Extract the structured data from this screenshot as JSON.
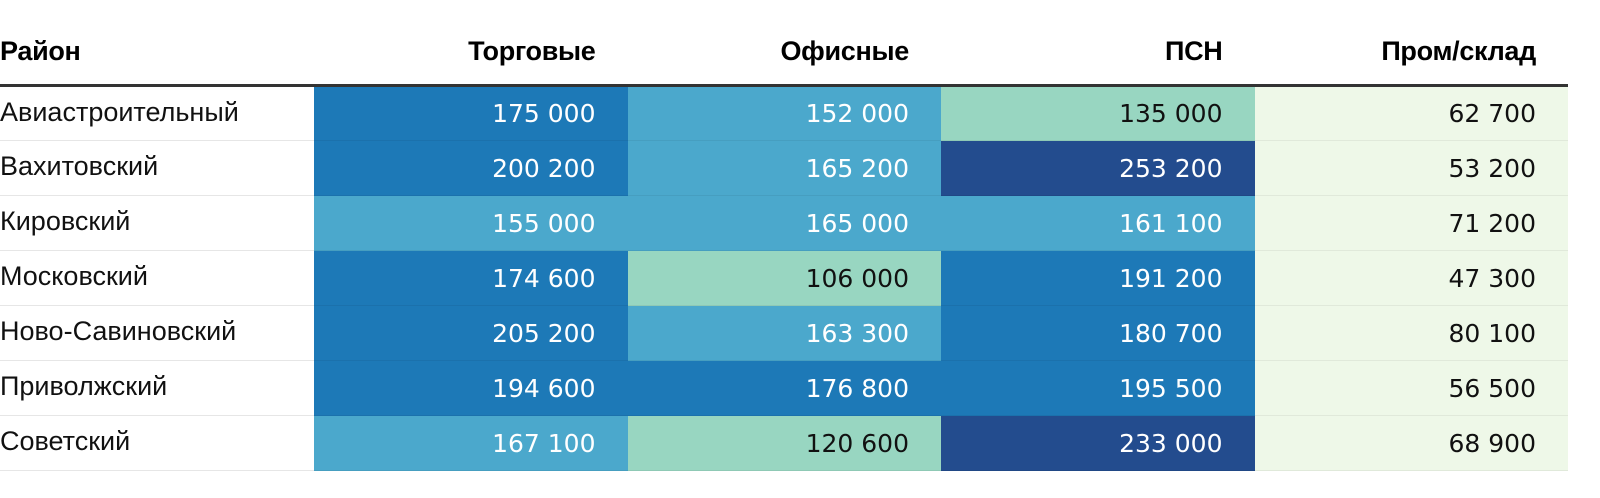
{
  "chart_data": {
    "type": "heatmap",
    "columns": [
      "Район",
      "Торговые",
      "Офисные",
      "ПСН",
      "Пром/склад"
    ],
    "rows": [
      {
        "district": "Авиастроительный",
        "values": [
          "175 000",
          "152 000",
          "135 000",
          "62 700"
        ],
        "nums": [
          175000,
          152000,
          135000,
          62700
        ]
      },
      {
        "district": "Вахитовский",
        "values": [
          "200 200",
          "165 200",
          "253 200",
          "53 200"
        ],
        "nums": [
          200200,
          165200,
          253200,
          53200
        ]
      },
      {
        "district": "Кировский",
        "values": [
          "155 000",
          "165 000",
          "161 100",
          "71 200"
        ],
        "nums": [
          155000,
          165000,
          161100,
          71200
        ]
      },
      {
        "district": "Московский",
        "values": [
          "174 600",
          "106 000",
          "191 200",
          "47 300"
        ],
        "nums": [
          174600,
          106000,
          191200,
          47300
        ]
      },
      {
        "district": "Ново-Савиновский",
        "values": [
          "205 200",
          "163 300",
          "180 700",
          "80 100"
        ],
        "nums": [
          205200,
          163300,
          180700,
          80100
        ]
      },
      {
        "district": "Приволжский",
        "values": [
          "194 600",
          "176 800",
          "195 500",
          "56 500"
        ],
        "nums": [
          194600,
          176800,
          195500,
          56500
        ]
      },
      {
        "district": "Советский",
        "values": [
          "167 100",
          "120 600",
          "233 000",
          "68 900"
        ],
        "nums": [
          167100,
          120600,
          233000,
          68900
        ]
      }
    ],
    "color_scale": [
      {
        "max": 100000,
        "bg": "#eef8e8",
        "fg": "#111111"
      },
      {
        "max": 150000,
        "bg": "#98d6c1",
        "fg": "#111111"
      },
      {
        "max": 170000,
        "bg": "#4ba8cc",
        "fg": "#ffffff"
      },
      {
        "max": 230000,
        "bg": "#1d79b7",
        "fg": "#ffffff"
      },
      {
        "max": 1000000000,
        "bg": "#234c8e",
        "fg": "#ffffff"
      }
    ]
  }
}
